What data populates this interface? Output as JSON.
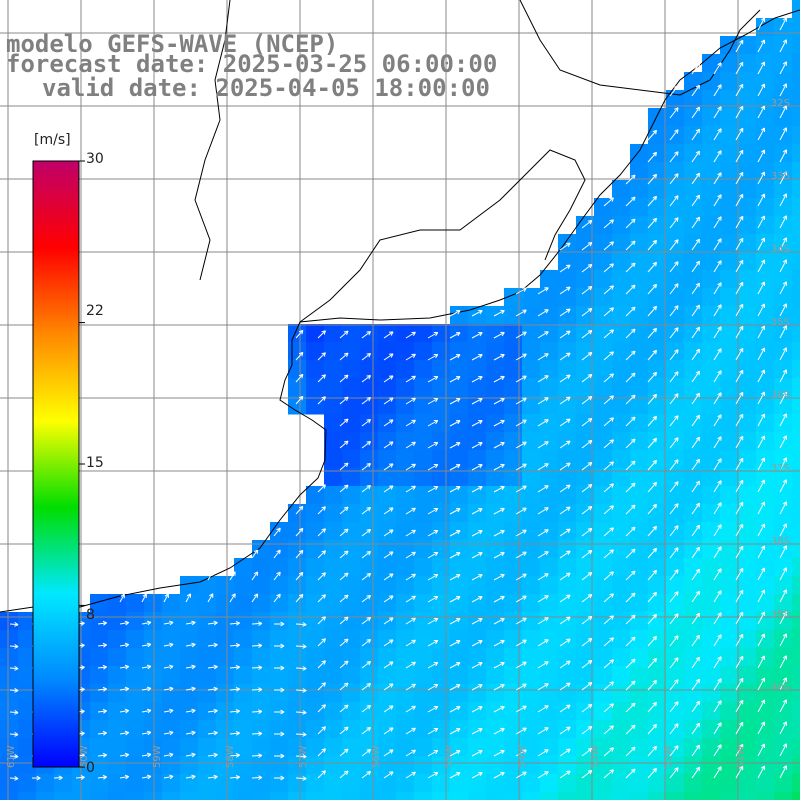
{
  "title": {
    "line1": "modelo GEFS-WAVE (NCEP)",
    "line2": "forecast date: 2025-03-25 06:00:00",
    "line3": "valid date: 2025-04-05 18:00:00"
  },
  "colorbar": {
    "unit": "[m/s]",
    "ticks": [
      "30",
      "22",
      "15",
      "8",
      "0"
    ],
    "tick_values": [
      30,
      22,
      15,
      8,
      0
    ],
    "range": [
      0,
      30
    ],
    "colors": [
      "#0000ff",
      "#0088ff",
      "#00e8ff",
      "#00dd00",
      "#ffff00",
      "#ff8800",
      "#ff0000",
      "#c0006a"
    ]
  },
  "lat_labels": [
    "32S",
    "33S",
    "34S",
    "35S",
    "36S",
    "37S",
    "38S",
    "39S",
    "40S"
  ],
  "lon_labels": [
    "61W",
    "60W",
    "59W",
    "58W",
    "57W",
    "56W",
    "55W",
    "54W",
    "53W",
    "52W",
    "51W"
  ],
  "colors": {
    "land": "#ffffff",
    "grid": "#888888",
    "coast": "#000000",
    "arrow": "#ffffff"
  }
}
